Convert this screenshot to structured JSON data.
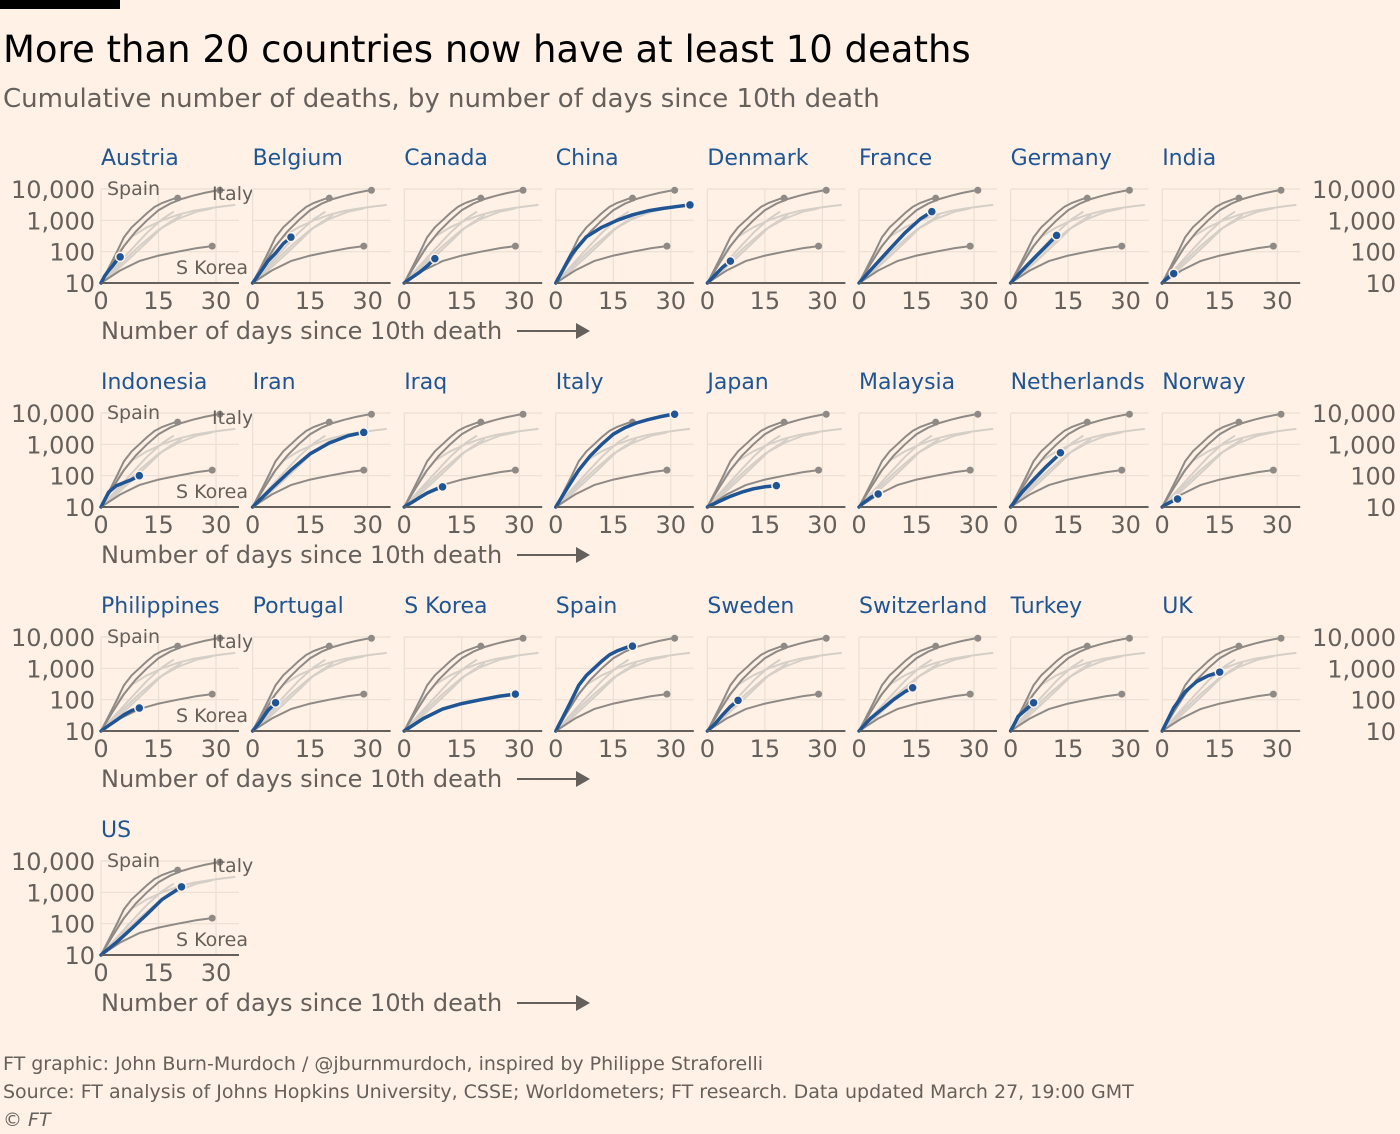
{
  "header": {
    "title": "More than 20 countries now have at least 10 deaths",
    "subtitle": "Cumulative number of deaths, by number of days since 10th death"
  },
  "footer": {
    "credit": "FT graphic: John Burn-Murdoch / @jburnmurdoch, inspired by Philippe Straforelli",
    "source": "Source: FT analysis of Johns Hopkins University, CSSE; Worldometers; FT research. Data updated March 27, 19:00 GMT",
    "copyright": "© FT"
  },
  "colors": {
    "background": "#fff1e5",
    "highlight": "#1f5594",
    "reference_dark": "#8f8a86",
    "reference_light": "#d6cfc8",
    "axis": "#66605c",
    "grid": "#ebdfd3",
    "panel_title": "#1f5594"
  },
  "chart_data": {
    "type": "line",
    "y_scale": "log",
    "xlabel": "Number of days since 10th death",
    "x_ticks": [
      0,
      15,
      30
    ],
    "y_ticks": [
      10,
      100,
      1000,
      10000
    ],
    "y_tick_labels": [
      "10",
      "100",
      "1,000",
      "10,000"
    ],
    "xlim": [
      0,
      36
    ],
    "ylim": [
      10,
      10000
    ],
    "reference_labels": {
      "Spain": "Spain",
      "Italy": "Italy",
      "S Korea": "S Korea"
    },
    "reference_series": [
      {
        "name": "Italy",
        "labelled": true,
        "x": [
          0,
          3,
          6,
          9,
          12,
          15,
          18,
          21,
          24,
          27,
          30,
          31
        ],
        "y": [
          10,
          40,
          150,
          430,
          1000,
          2100,
          3400,
          4800,
          6100,
          7500,
          8900,
          9100
        ]
      },
      {
        "name": "Spain",
        "labelled": true,
        "x": [
          0,
          2,
          4,
          6,
          8,
          10,
          12,
          14,
          16,
          19,
          20
        ],
        "y": [
          10,
          30,
          90,
          290,
          600,
          1000,
          1700,
          2700,
          3600,
          4900,
          5100
        ]
      },
      {
        "name": "S Korea",
        "labelled": true,
        "x": [
          0,
          5,
          10,
          15,
          20,
          25,
          29
        ],
        "y": [
          10,
          25,
          50,
          75,
          100,
          130,
          150
        ]
      },
      {
        "name": "China",
        "labelled": false,
        "x": [
          0,
          4,
          8,
          12,
          16,
          20,
          24,
          28,
          32,
          35
        ],
        "y": [
          10,
          80,
          300,
          600,
          1000,
          1500,
          2000,
          2400,
          2800,
          3100
        ]
      },
      {
        "name": "Iran",
        "labelled": false,
        "x": [
          0,
          5,
          10,
          15,
          20,
          25,
          29
        ],
        "y": [
          10,
          40,
          150,
          500,
          1100,
          1900,
          2400
        ]
      },
      {
        "name": "France",
        "labelled": false,
        "x": [
          0,
          4,
          8,
          12,
          16,
          19
        ],
        "y": [
          10,
          35,
          120,
          400,
          1100,
          1900
        ]
      },
      {
        "name": "US",
        "labelled": false,
        "x": [
          0,
          4,
          8,
          12,
          16,
          21
        ],
        "y": [
          10,
          25,
          70,
          200,
          600,
          1500
        ]
      }
    ],
    "panels": [
      {
        "country": "Austria",
        "x": [
          0,
          1,
          2,
          3,
          4,
          5
        ],
        "y": [
          10,
          17,
          25,
          35,
          50,
          68
        ]
      },
      {
        "country": "Belgium",
        "x": [
          0,
          2,
          4,
          6,
          8,
          10
        ],
        "y": [
          10,
          22,
          50,
          90,
          180,
          290
        ]
      },
      {
        "country": "Canada",
        "x": [
          0,
          2,
          4,
          6,
          8
        ],
        "y": [
          10,
          15,
          22,
          35,
          60
        ]
      },
      {
        "country": "China",
        "x": [
          0,
          4,
          8,
          12,
          16,
          20,
          24,
          28,
          32,
          35
        ],
        "y": [
          10,
          80,
          300,
          600,
          1000,
          1500,
          2000,
          2400,
          2800,
          3100
        ]
      },
      {
        "country": "Denmark",
        "x": [
          0,
          2,
          4,
          6
        ],
        "y": [
          10,
          18,
          32,
          50
        ]
      },
      {
        "country": "France",
        "x": [
          0,
          4,
          8,
          12,
          16,
          19
        ],
        "y": [
          10,
          35,
          120,
          400,
          1100,
          1900
        ]
      },
      {
        "country": "Germany",
        "x": [
          0,
          3,
          6,
          9,
          12
        ],
        "y": [
          10,
          25,
          60,
          140,
          330
        ]
      },
      {
        "country": "India",
        "x": [
          0,
          1,
          2,
          3
        ],
        "y": [
          10,
          13,
          17,
          20
        ]
      },
      {
        "country": "Indonesia",
        "x": [
          0,
          2,
          4,
          6,
          8,
          10
        ],
        "y": [
          10,
          30,
          48,
          60,
          75,
          100
        ]
      },
      {
        "country": "Iran",
        "x": [
          0,
          5,
          10,
          15,
          20,
          25,
          29
        ],
        "y": [
          10,
          40,
          150,
          500,
          1100,
          1900,
          2400
        ]
      },
      {
        "country": "Iraq",
        "x": [
          0,
          2,
          4,
          6,
          8,
          10
        ],
        "y": [
          10,
          14,
          20,
          28,
          36,
          44
        ]
      },
      {
        "country": "Italy",
        "x": [
          0,
          3,
          6,
          9,
          12,
          15,
          18,
          21,
          24,
          27,
          30,
          31
        ],
        "y": [
          10,
          40,
          150,
          430,
          1000,
          2100,
          3400,
          4800,
          6100,
          7500,
          8900,
          9100
        ]
      },
      {
        "country": "Japan",
        "x": [
          0,
          3,
          6,
          9,
          12,
          15,
          18
        ],
        "y": [
          10,
          15,
          22,
          30,
          38,
          44,
          48
        ]
      },
      {
        "country": "Malaysia",
        "x": [
          0,
          1,
          2,
          3,
          4,
          5
        ],
        "y": [
          10,
          13,
          16,
          20,
          23,
          26
        ]
      },
      {
        "country": "Netherlands",
        "x": [
          0,
          3,
          6,
          9,
          12,
          13
        ],
        "y": [
          10,
          30,
          75,
          180,
          400,
          540
        ]
      },
      {
        "country": "Norway",
        "x": [
          0,
          1,
          2,
          3,
          4
        ],
        "y": [
          10,
          12,
          14,
          16,
          18
        ]
      },
      {
        "country": "Philippines",
        "x": [
          0,
          2,
          4,
          6,
          8,
          10
        ],
        "y": [
          10,
          15,
          22,
          33,
          45,
          54
        ]
      },
      {
        "country": "Portugal",
        "x": [
          0,
          2,
          4,
          6
        ],
        "y": [
          10,
          20,
          45,
          80
        ]
      },
      {
        "country": "S Korea",
        "x": [
          0,
          5,
          10,
          15,
          20,
          25,
          29
        ],
        "y": [
          10,
          25,
          50,
          75,
          100,
          130,
          150
        ]
      },
      {
        "country": "Spain",
        "x": [
          0,
          2,
          4,
          6,
          8,
          10,
          12,
          14,
          16,
          19,
          20
        ],
        "y": [
          10,
          30,
          90,
          290,
          600,
          1000,
          1700,
          2700,
          3600,
          4900,
          5100
        ]
      },
      {
        "country": "Sweden",
        "x": [
          0,
          2,
          4,
          6,
          8
        ],
        "y": [
          10,
          17,
          33,
          60,
          95
        ]
      },
      {
        "country": "Switzerland",
        "x": [
          0,
          3,
          6,
          9,
          12,
          14
        ],
        "y": [
          10,
          25,
          50,
          100,
          180,
          240
        ]
      },
      {
        "country": "Turkey",
        "x": [
          0,
          1,
          2,
          4,
          6
        ],
        "y": [
          10,
          17,
          30,
          48,
          80
        ]
      },
      {
        "country": "UK",
        "x": [
          0,
          3,
          6,
          9,
          12,
          15
        ],
        "y": [
          10,
          55,
          180,
          380,
          580,
          760
        ]
      },
      {
        "country": "US",
        "x": [
          0,
          4,
          8,
          12,
          16,
          21
        ],
        "y": [
          10,
          25,
          70,
          200,
          600,
          1500
        ]
      }
    ]
  }
}
